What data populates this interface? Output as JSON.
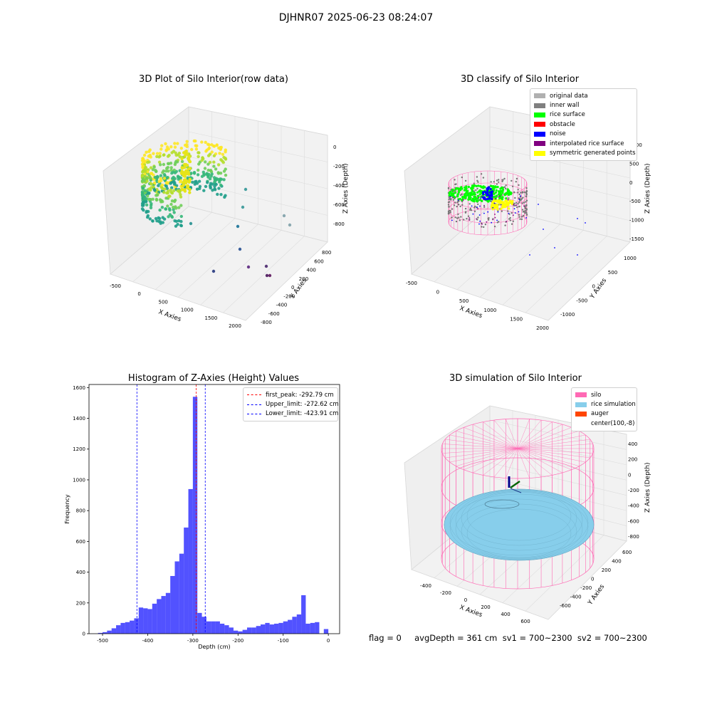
{
  "figure": {
    "suptitle": "DJHNR07 2025-06-23 08:24:07",
    "footer": "flag = 0     avgDepth = 361 cm  sv1 = 700~2300  sv2 = 700~2300"
  },
  "panels": {
    "raw": {
      "title": "3D Plot of Silo Interior(row data)",
      "xlabel": "X Axies",
      "ylabel": "Y Axies",
      "zlabel": "Z Axies (Depth)",
      "xticks": [
        "-500",
        "0",
        "500",
        "1000",
        "1500",
        "2000"
      ],
      "yticks": [
        "800",
        "600",
        "400",
        "200",
        "0",
        "-200",
        "-400",
        "-600",
        "-800"
      ],
      "zticks": [
        "0",
        "-200",
        "-400",
        "-600",
        "-800"
      ]
    },
    "classify": {
      "title": "3D classify of Silo Interior",
      "xlabel": "X Axies",
      "ylabel": "Y Axies",
      "zlabel": "Z Axies (Depth)",
      "xticks": [
        "-500",
        "0",
        "500",
        "1000",
        "1500",
        "2000"
      ],
      "yticks": [
        "1000",
        "500",
        "0",
        "-500",
        "-1000"
      ],
      "zticks": [
        "1000",
        "500",
        "0",
        "-500",
        "-1000",
        "-1500"
      ],
      "legend": [
        {
          "label": "original data",
          "color": "#b0b0b0"
        },
        {
          "label": "inner wall",
          "color": "#808080"
        },
        {
          "label": "rice surface",
          "color": "#00ff00"
        },
        {
          "label": "obstacle",
          "color": "#ff0000"
        },
        {
          "label": "noise",
          "color": "#0000ff"
        },
        {
          "label": "interpolated rice surface",
          "color": "#800080"
        },
        {
          "label": "symmetric generated points",
          "color": "#ffff00"
        }
      ]
    },
    "simulation": {
      "title": "3D simulation of Silo Interior",
      "xlabel": "X Axies",
      "ylabel": "Y Axies",
      "zlabel": "Z Axies (Depth)",
      "xticks": [
        "-400",
        "-200",
        "0",
        "200",
        "400",
        "600"
      ],
      "yticks": [
        "600",
        "400",
        "200",
        "0",
        "-200",
        "-400",
        "-600"
      ],
      "zticks": [
        "400",
        "200",
        "0",
        "-200",
        "-400",
        "-600",
        "-800"
      ],
      "legend": [
        {
          "label": "silo",
          "color": "#ff69b4"
        },
        {
          "label": "rice simulation",
          "color": "#87ceeb"
        },
        {
          "label": "auger",
          "color": "#ff4500"
        },
        {
          "label": "center(100,-8)",
          "color": "#ffffff"
        }
      ]
    }
  },
  "chart_data": {
    "type": "bar",
    "title": "Histogram of Z-Axies (Height) Values",
    "xlabel": "Depth (cm)",
    "ylabel": "Frequency",
    "xlim": [
      -530,
      25
    ],
    "ylim": [
      0,
      1620
    ],
    "xticks": [
      -500,
      -400,
      -300,
      -200,
      -100,
      0
    ],
    "yticks": [
      0,
      200,
      400,
      600,
      800,
      1000,
      1200,
      1400,
      1600
    ],
    "bar_color": "#0000ff",
    "bin_width": 10,
    "bin_left_edges": [
      -510,
      -500,
      -490,
      -480,
      -470,
      -460,
      -450,
      -440,
      -430,
      -420,
      -410,
      -400,
      -390,
      -380,
      -370,
      -360,
      -350,
      -340,
      -330,
      -320,
      -310,
      -300,
      -290,
      -280,
      -270,
      -260,
      -250,
      -240,
      -230,
      -220,
      -210,
      -200,
      -190,
      -180,
      -170,
      -160,
      -150,
      -140,
      -130,
      -120,
      -110,
      -100,
      -90,
      -80,
      -70,
      -60,
      -50,
      -40,
      -30,
      -20,
      -10,
      0
    ],
    "values": [
      5,
      10,
      20,
      35,
      55,
      70,
      75,
      85,
      100,
      170,
      165,
      160,
      195,
      225,
      245,
      265,
      375,
      470,
      520,
      690,
      940,
      1540,
      135,
      110,
      80,
      80,
      80,
      65,
      55,
      40,
      20,
      15,
      25,
      40,
      40,
      50,
      60,
      70,
      60,
      65,
      70,
      80,
      90,
      110,
      125,
      250,
      65,
      70,
      75,
      0,
      30,
      0
    ],
    "lines": [
      {
        "label": "first_peak: -292.79 cm",
        "x": -292.79,
        "color": "#ff0000"
      },
      {
        "label": "Upper_limit: -272.62 cm",
        "x": -272.62,
        "color": "#0000ff"
      },
      {
        "label": "Lower_limit: -423.91 cm",
        "x": -423.91,
        "color": "#0000ff"
      }
    ],
    "legend_position": "top-right"
  }
}
